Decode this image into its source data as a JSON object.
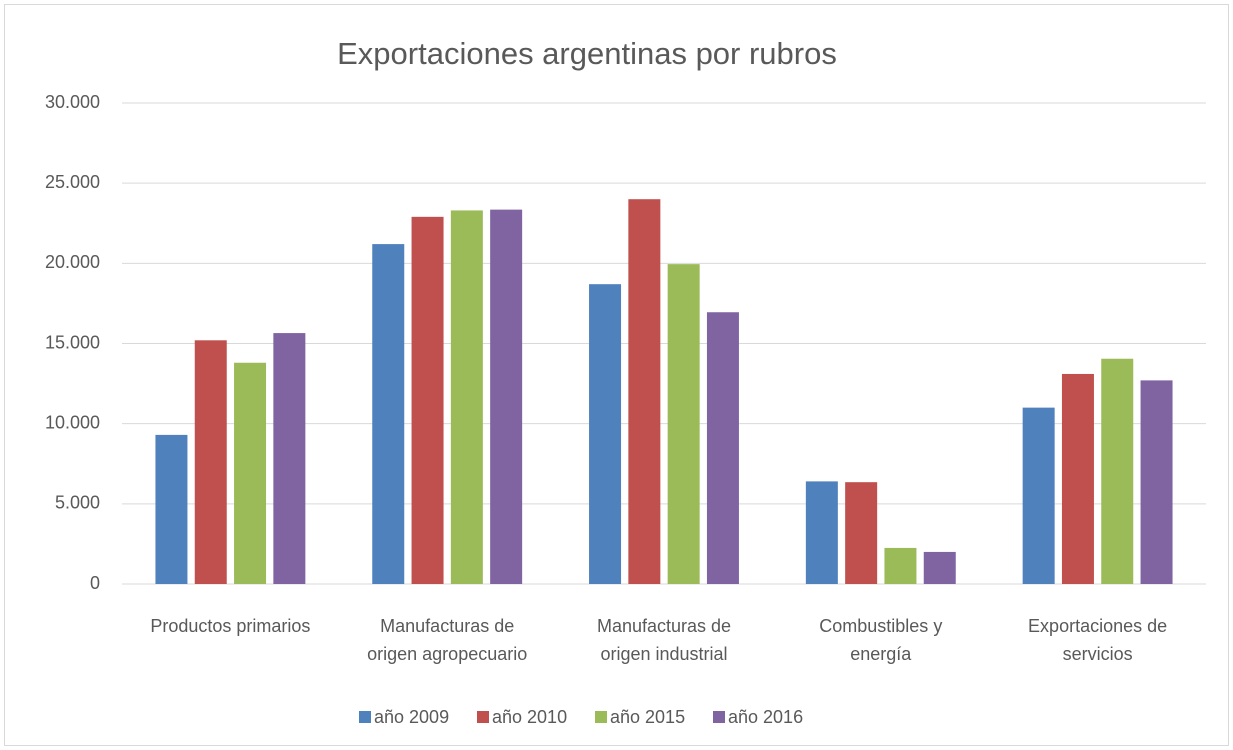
{
  "chart_data": {
    "type": "bar",
    "title": "Exportaciones argentinas por rubros",
    "categories": [
      "Productos primarios",
      "Manufacturas de\norigen agropecuario",
      "Manufacturas de\norigen industrial",
      "Combustibles y\nenergía",
      "Exportaciones de\nservicios"
    ],
    "series": [
      {
        "name": "año 2009",
        "color": "#4f81bd",
        "values": [
          9300,
          21200,
          18700,
          6400,
          11000
        ]
      },
      {
        "name": "año 2010",
        "color": "#c0504d",
        "values": [
          15200,
          22900,
          24000,
          6350,
          13100
        ]
      },
      {
        "name": "año 2015",
        "color": "#9bbb59",
        "values": [
          13800,
          23300,
          19950,
          2250,
          14050
        ]
      },
      {
        "name": "año 2016",
        "color": "#8064a2",
        "values": [
          15650,
          23350,
          16950,
          2000,
          12700
        ]
      }
    ],
    "ylim": [
      0,
      30000
    ],
    "yticks": [
      0,
      {
        "value": 5000,
        "label": "5.000"
      },
      {
        "value": 10000,
        "label": "10.000"
      },
      {
        "value": 15000,
        "label": "15.000"
      },
      {
        "value": 20000,
        "label": "20.000"
      },
      {
        "value": 25000,
        "label": "25.000"
      },
      {
        "value": 30000,
        "label": "30.000"
      }
    ],
    "grid": true,
    "legend": "bottom"
  }
}
